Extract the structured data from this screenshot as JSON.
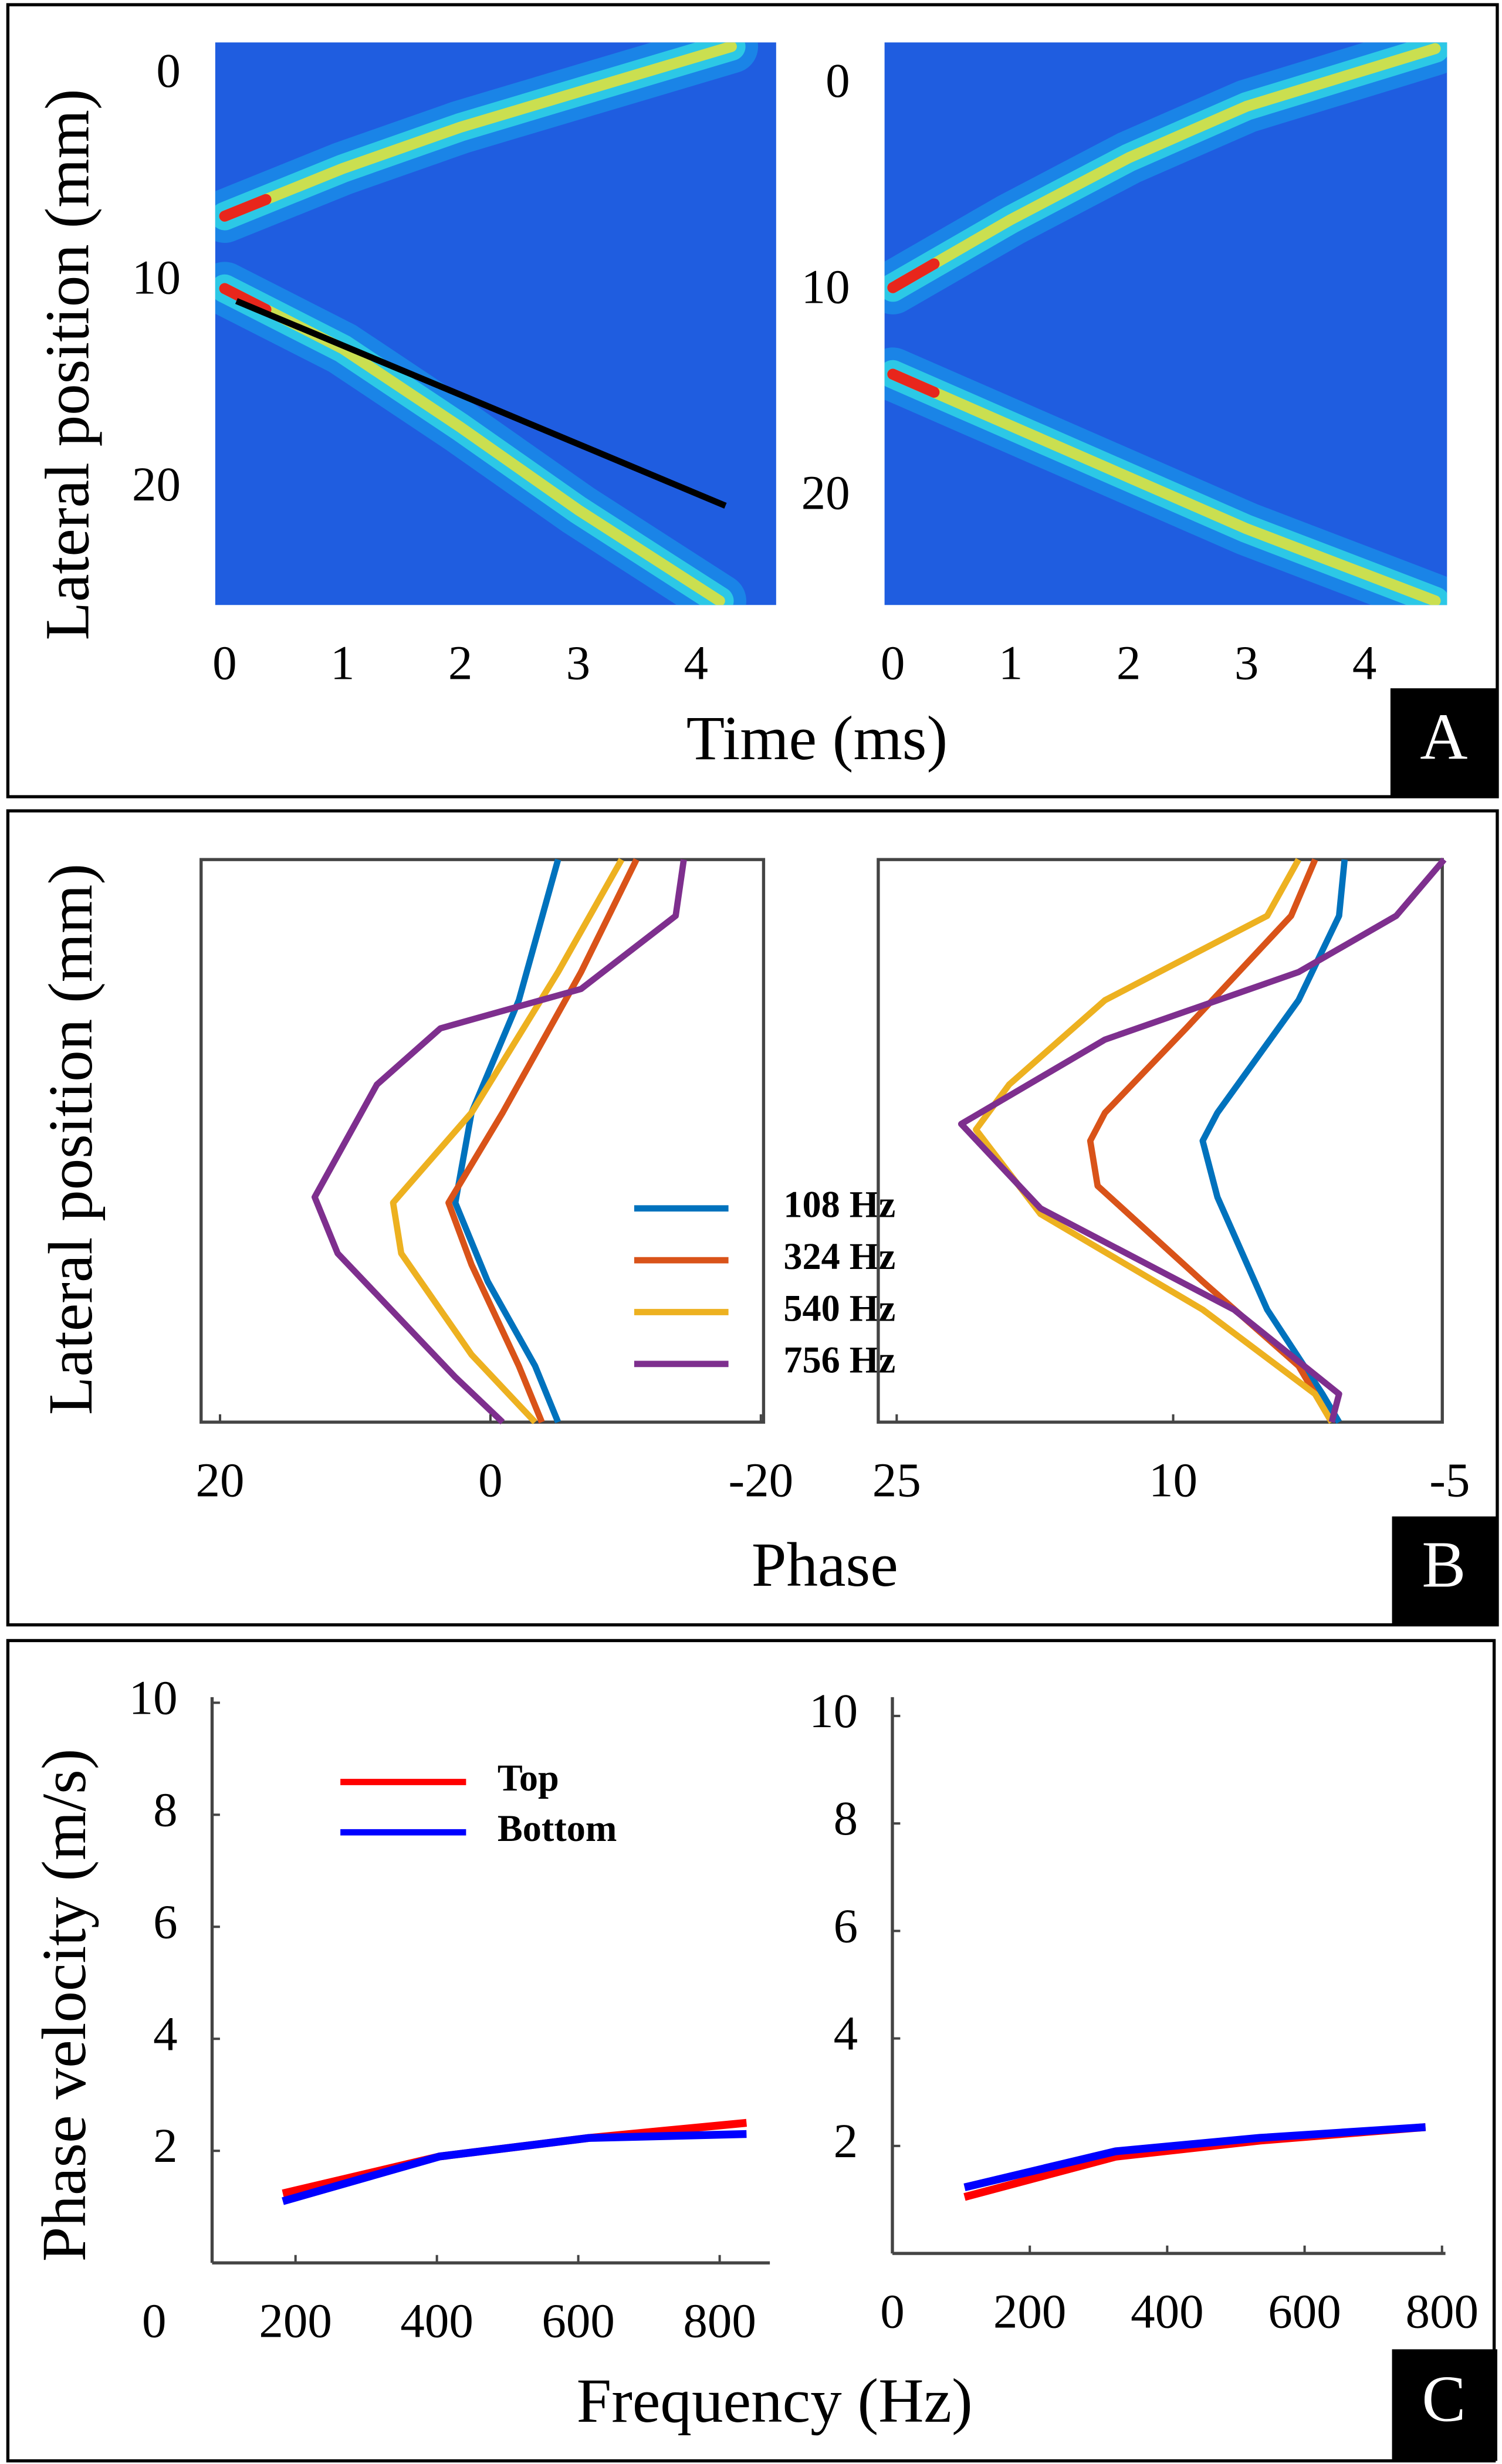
{
  "panels": [
    {
      "letter": "A",
      "xlabel": "Time (ms)",
      "ylabel": "Lateral position (mm)"
    },
    {
      "letter": "B",
      "xlabel": "Phase",
      "ylabel": "Lateral position (mm)"
    },
    {
      "letter": "C",
      "xlabel": "Frequency (Hz)",
      "ylabel": "Phase velocity (m/s)"
    }
  ],
  "chart_data": [
    {
      "type": "heatmap",
      "background": "#1f5de0",
      "xlim": [
        -0.08,
        4.68
      ],
      "ylim": [
        25.6,
        -1.6
      ],
      "xticks": [
        0,
        1,
        2,
        3,
        4
      ],
      "yticks": [
        0,
        10,
        20
      ],
      "series": [
        {
          "color": "#f2e52a",
          "x": [
            0,
            1,
            2,
            3,
            4.3
          ],
          "values": [
            6.8,
            4.5,
            2.5,
            0.8,
            -1.4
          ]
        },
        {
          "color": "#f2e52a",
          "x": [
            0,
            1,
            2,
            3,
            4.2
          ],
          "values": [
            10.3,
            13.2,
            17,
            21,
            25.4
          ]
        }
      ],
      "fit": {
        "color": "#000000",
        "x": [
          0.1,
          4.25
        ],
        "values": [
          10.9,
          20.8
        ]
      }
    },
    {
      "type": "heatmap",
      "background": "#1f5de0",
      "xlim": [
        -0.07,
        4.7
      ],
      "ylim": [
        25.2,
        -2.1
      ],
      "xticks": [
        0,
        1,
        2,
        3,
        4
      ],
      "yticks": [
        0,
        10,
        20
      ],
      "series": [
        {
          "color": "#f2e52a",
          "x": [
            0,
            1,
            2,
            3,
            4.6
          ],
          "values": [
            9.8,
            6.5,
            3.5,
            1,
            -1.8
          ]
        },
        {
          "color": "#f2e52a",
          "x": [
            0,
            1,
            2,
            3,
            4.6
          ],
          "values": [
            14,
            16.5,
            19,
            21.5,
            25
          ]
        }
      ]
    },
    {
      "type": "line",
      "box": true,
      "legend": "center",
      "xlim": [
        21.4,
        -20.2
      ],
      "ylim": [
        1,
        0
      ],
      "xticks": [
        20,
        0,
        -20
      ],
      "series": [
        {
          "name": "108 Hz",
          "color": "#0072bd",
          "x": [
            -5,
            -2.1,
            1.4,
            2.6,
            0.2,
            -3.3,
            -5
          ],
          "values": [
            0,
            0.25,
            0.45,
            0.61,
            0.75,
            0.9,
            1
          ]
        },
        {
          "name": "324 Hz",
          "color": "#d95319",
          "x": [
            -10.8,
            -6.7,
            -0.9,
            3.1,
            1.4,
            -2.1,
            -3.8
          ],
          "values": [
            0,
            0.2,
            0.45,
            0.61,
            0.72,
            0.9,
            1
          ]
        },
        {
          "name": "540 Hz",
          "color": "#edb120",
          "x": [
            -9.7,
            -5,
            1.4,
            7.2,
            6.6,
            1.4,
            -3.3
          ],
          "values": [
            0,
            0.2,
            0.45,
            0.61,
            0.7,
            0.88,
            1
          ]
        },
        {
          "name": "756 Hz",
          "color": "#7e2f8e",
          "x": [
            -14.3,
            -13.7,
            -6.7,
            3.7,
            8.4,
            13,
            11.3,
            2.6,
            -0.9
          ],
          "values": [
            0,
            0.1,
            0.23,
            0.3,
            0.4,
            0.6,
            0.7,
            0.92,
            1
          ]
        }
      ]
    },
    {
      "type": "line",
      "box": true,
      "xlim": [
        26,
        -4.6
      ],
      "ylim": [
        1,
        0
      ],
      "xticks": [
        25,
        10,
        -5
      ],
      "series": [
        {
          "color": "#0072bd",
          "x": [
            0.7,
            1,
            3.2,
            7.6,
            8.4,
            7.6,
            4.9,
            1.9,
            1
          ],
          "values": [
            0,
            0.1,
            0.25,
            0.45,
            0.5,
            0.6,
            0.8,
            0.95,
            1
          ]
        },
        {
          "color": "#d95319",
          "x": [
            2.3,
            3.6,
            9.3,
            13.7,
            14.5,
            14.1,
            8.4,
            3.2,
            1.4
          ],
          "values": [
            0,
            0.1,
            0.3,
            0.45,
            0.5,
            0.58,
            0.75,
            0.9,
            1
          ]
        },
        {
          "color": "#edb120",
          "x": [
            3.2,
            4.9,
            13.7,
            18.9,
            20.7,
            17.2,
            8.4,
            2.3,
            1.4
          ],
          "values": [
            0,
            0.1,
            0.25,
            0.4,
            0.48,
            0.63,
            0.8,
            0.95,
            1
          ]
        },
        {
          "color": "#7e2f8e",
          "x": [
            -4.7,
            -2.1,
            3.2,
            13.7,
            21.5,
            17.2,
            6.7,
            1,
            1.4
          ],
          "values": [
            0,
            0.1,
            0.2,
            0.32,
            0.47,
            0.62,
            0.8,
            0.95,
            1
          ]
        }
      ]
    },
    {
      "type": "line",
      "box": false,
      "legend": "upper left",
      "xlim": [
        82,
        871
      ],
      "ylim": [
        0,
        10.1
      ],
      "xticks": [
        0,
        200,
        400,
        600,
        800
      ],
      "yticks": [
        2,
        4,
        6,
        8,
        10
      ],
      "series": [
        {
          "name": "Top",
          "color": "#ff0000",
          "x": [
            182,
            404,
            615,
            838
          ],
          "values": [
            1.24,
            1.9,
            2.23,
            2.5
          ]
        },
        {
          "name": "Bottom",
          "color": "#0000ff",
          "x": [
            182,
            404,
            615,
            838
          ],
          "values": [
            1.1,
            1.9,
            2.23,
            2.3
          ]
        }
      ]
    },
    {
      "type": "line",
      "box": false,
      "xlim": [
        0,
        805
      ],
      "ylim": [
        0,
        10.35
      ],
      "xticks": [
        0,
        200,
        400,
        600,
        800
      ],
      "yticks": [
        2,
        4,
        6,
        8,
        10
      ],
      "series": [
        {
          "color": "#ff0000",
          "x": [
            105,
            325,
            535,
            776
          ],
          "values": [
            1.05,
            1.8,
            2.1,
            2.35
          ]
        },
        {
          "color": "#0000ff",
          "x": [
            105,
            325,
            535,
            776
          ],
          "values": [
            1.23,
            1.9,
            2.15,
            2.35
          ]
        }
      ]
    }
  ]
}
